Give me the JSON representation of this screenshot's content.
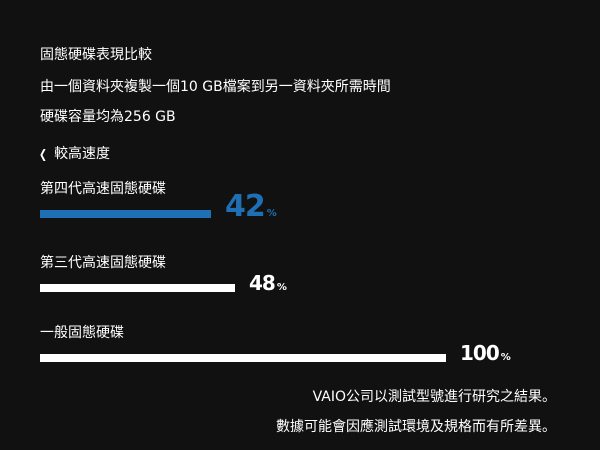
{
  "header": {
    "line1": "固態硬碟表現比較",
    "line2": "由一個資料夾複製一個10 GB檔案到另一資料夾所需時間",
    "line3": "硬碟容量均為256 GB"
  },
  "speed_note": {
    "icon": "chevron-left-icon",
    "label": "較高速度"
  },
  "colors": {
    "background": "#111111",
    "highlight": "#1f6fb5",
    "bar": "#ffffff"
  },
  "chart_data": {
    "type": "bar",
    "orientation": "horizontal",
    "categories": [
      "第四代高速固態硬碟",
      "第三代高速固態硬碟",
      "一般固態硬碟"
    ],
    "values": [
      42,
      48,
      100
    ],
    "unit": "%",
    "value_labels": [
      "42",
      "48",
      "100"
    ],
    "xlim": [
      0,
      100
    ],
    "grid": false,
    "legend": "none"
  },
  "footer": {
    "line1": "VAIO公司以測試型號進行研究之結果。",
    "line2": "數據可能會因應測試環境及規格而有所差異。"
  }
}
